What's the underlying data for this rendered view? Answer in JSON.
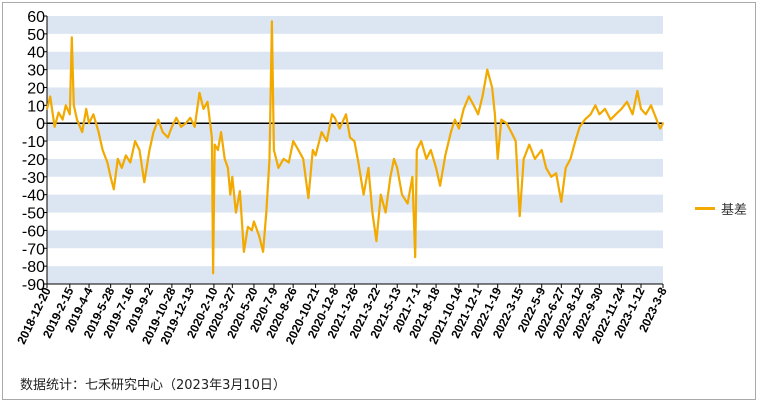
{
  "chart_data": {
    "type": "line",
    "title": "",
    "xlabel": "",
    "ylabel": "",
    "ylim": [
      -90,
      60
    ],
    "y_ticks": [
      60,
      50,
      40,
      30,
      20,
      10,
      0,
      -10,
      -20,
      -30,
      -40,
      -50,
      -60,
      -70,
      -80,
      -90
    ],
    "x_tick_labels": [
      "2018-12-20",
      "2019-2-15",
      "2019-4-4",
      "2019-5-28",
      "2019-7-16",
      "2019-9-2",
      "2019-10-28",
      "2019-12-13",
      "2020-2-10",
      "2020-3-27",
      "2020-5-20",
      "2020-7-9",
      "2020-8-26",
      "2020-10-21",
      "2020-12-8",
      "2021-1-26",
      "2021-3-22",
      "2021-5-13",
      "2021-7-1",
      "2021-8-18",
      "2021-10-14",
      "2021-12-1",
      "2022-1-19",
      "2022-3-15",
      "2022-5-9",
      "2022-6-27",
      "2022-8-12",
      "2022-9-30",
      "2022-11-24",
      "2023-1-12",
      "2023-3-8"
    ],
    "grid": "alternating-horizontal-bands",
    "legend_position": "right",
    "series": [
      {
        "name": "基差",
        "color": "#F2A900",
        "points": [
          {
            "x": "2018-12-20",
            "y": 8
          },
          {
            "x": "2018-12-28",
            "y": 15
          },
          {
            "x": "2019-1-8",
            "y": -2
          },
          {
            "x": "2019-1-18",
            "y": 6
          },
          {
            "x": "2019-1-28",
            "y": 2
          },
          {
            "x": "2019-2-5",
            "y": 10
          },
          {
            "x": "2019-2-15",
            "y": 5
          },
          {
            "x": "2019-2-20",
            "y": 48
          },
          {
            "x": "2019-2-25",
            "y": 10
          },
          {
            "x": "2019-3-5",
            "y": 2
          },
          {
            "x": "2019-3-18",
            "y": -5
          },
          {
            "x": "2019-3-28",
            "y": 8
          },
          {
            "x": "2019-4-4",
            "y": 0
          },
          {
            "x": "2019-4-15",
            "y": 5
          },
          {
            "x": "2019-4-28",
            "y": -5
          },
          {
            "x": "2019-5-8",
            "y": -15
          },
          {
            "x": "2019-5-20",
            "y": -22
          },
          {
            "x": "2019-5-28",
            "y": -30
          },
          {
            "x": "2019-6-5",
            "y": -37
          },
          {
            "x": "2019-6-15",
            "y": -20
          },
          {
            "x": "2019-6-25",
            "y": -25
          },
          {
            "x": "2019-7-5",
            "y": -18
          },
          {
            "x": "2019-7-16",
            "y": -22
          },
          {
            "x": "2019-7-28",
            "y": -10
          },
          {
            "x": "2019-8-8",
            "y": -15
          },
          {
            "x": "2019-8-20",
            "y": -33
          },
          {
            "x": "2019-9-2",
            "y": -15
          },
          {
            "x": "2019-9-12",
            "y": -5
          },
          {
            "x": "2019-9-24",
            "y": 2
          },
          {
            "x": "2019-10-5",
            "y": -5
          },
          {
            "x": "2019-10-18",
            "y": -8
          },
          {
            "x": "2019-10-28",
            "y": -2
          },
          {
            "x": "2019-11-8",
            "y": 3
          },
          {
            "x": "2019-11-20",
            "y": -2
          },
          {
            "x": "2019-12-2",
            "y": 0
          },
          {
            "x": "2019-12-13",
            "y": 3
          },
          {
            "x": "2019-12-24",
            "y": -2
          },
          {
            "x": "2020-1-5",
            "y": 17
          },
          {
            "x": "2020-1-15",
            "y": 8
          },
          {
            "x": "2020-1-25",
            "y": 12
          },
          {
            "x": "2020-2-5",
            "y": -8
          },
          {
            "x": "2020-2-8",
            "y": -84
          },
          {
            "x": "2020-2-12",
            "y": -12
          },
          {
            "x": "2020-2-20",
            "y": -15
          },
          {
            "x": "2020-2-28",
            "y": -5
          },
          {
            "x": "2020-3-8",
            "y": -20
          },
          {
            "x": "2020-3-16",
            "y": -25
          },
          {
            "x": "2020-3-22",
            "y": -40
          },
          {
            "x": "2020-3-27",
            "y": -30
          },
          {
            "x": "2020-4-5",
            "y": -50
          },
          {
            "x": "2020-4-15",
            "y": -38
          },
          {
            "x": "2020-4-25",
            "y": -72
          },
          {
            "x": "2020-5-5",
            "y": -58
          },
          {
            "x": "2020-5-15",
            "y": -60
          },
          {
            "x": "2020-5-20",
            "y": -55
          },
          {
            "x": "2020-6-2",
            "y": -63
          },
          {
            "x": "2020-6-12",
            "y": -72
          },
          {
            "x": "2020-6-20",
            "y": -50
          },
          {
            "x": "2020-6-28",
            "y": -20
          },
          {
            "x": "2020-7-4",
            "y": 57
          },
          {
            "x": "2020-7-9",
            "y": -15
          },
          {
            "x": "2020-7-20",
            "y": -25
          },
          {
            "x": "2020-8-2",
            "y": -20
          },
          {
            "x": "2020-8-15",
            "y": -22
          },
          {
            "x": "2020-8-26",
            "y": -10
          },
          {
            "x": "2020-9-8",
            "y": -15
          },
          {
            "x": "2020-9-20",
            "y": -20
          },
          {
            "x": "2020-10-3",
            "y": -42
          },
          {
            "x": "2020-10-14",
            "y": -15
          },
          {
            "x": "2020-10-21",
            "y": -18
          },
          {
            "x": "2020-11-5",
            "y": -5
          },
          {
            "x": "2020-11-18",
            "y": -10
          },
          {
            "x": "2020-12-1",
            "y": 5
          },
          {
            "x": "2020-12-8",
            "y": 3
          },
          {
            "x": "2020-12-20",
            "y": -3
          },
          {
            "x": "2021-1-5",
            "y": 5
          },
          {
            "x": "2021-1-15",
            "y": -8
          },
          {
            "x": "2021-1-26",
            "y": -10
          },
          {
            "x": "2021-2-5",
            "y": -22
          },
          {
            "x": "2021-2-18",
            "y": -40
          },
          {
            "x": "2021-3-2",
            "y": -25
          },
          {
            "x": "2021-3-12",
            "y": -50
          },
          {
            "x": "2021-3-22",
            "y": -66
          },
          {
            "x": "2021-4-2",
            "y": -40
          },
          {
            "x": "2021-4-14",
            "y": -50
          },
          {
            "x": "2021-4-26",
            "y": -30
          },
          {
            "x": "2021-5-5",
            "y": -20
          },
          {
            "x": "2021-5-13",
            "y": -25
          },
          {
            "x": "2021-5-25",
            "y": -40
          },
          {
            "x": "2021-6-8",
            "y": -45
          },
          {
            "x": "2021-6-20",
            "y": -30
          },
          {
            "x": "2021-6-27",
            "y": -75
          },
          {
            "x": "2021-7-1",
            "y": -15
          },
          {
            "x": "2021-7-12",
            "y": -10
          },
          {
            "x": "2021-7-25",
            "y": -20
          },
          {
            "x": "2021-8-5",
            "y": -15
          },
          {
            "x": "2021-8-18",
            "y": -25
          },
          {
            "x": "2021-8-28",
            "y": -35
          },
          {
            "x": "2021-9-10",
            "y": -18
          },
          {
            "x": "2021-9-24",
            "y": -5
          },
          {
            "x": "2021-10-4",
            "y": 2
          },
          {
            "x": "2021-10-14",
            "y": -3
          },
          {
            "x": "2021-10-26",
            "y": 8
          },
          {
            "x": "2021-11-8",
            "y": 15
          },
          {
            "x": "2021-11-20",
            "y": 10
          },
          {
            "x": "2021-12-1",
            "y": 5
          },
          {
            "x": "2021-12-12",
            "y": 15
          },
          {
            "x": "2021-12-24",
            "y": 30
          },
          {
            "x": "2022-1-5",
            "y": 20
          },
          {
            "x": "2022-1-12",
            "y": 5
          },
          {
            "x": "2022-1-19",
            "y": -20
          },
          {
            "x": "2022-1-28",
            "y": 2
          },
          {
            "x": "2022-2-10",
            "y": 0
          },
          {
            "x": "2022-2-22",
            "y": -5
          },
          {
            "x": "2022-3-5",
            "y": -10
          },
          {
            "x": "2022-3-15",
            "y": -52
          },
          {
            "x": "2022-3-25",
            "y": -20
          },
          {
            "x": "2022-4-8",
            "y": -12
          },
          {
            "x": "2022-4-22",
            "y": -20
          },
          {
            "x": "2022-5-9",
            "y": -15
          },
          {
            "x": "2022-5-20",
            "y": -25
          },
          {
            "x": "2022-6-2",
            "y": -30
          },
          {
            "x": "2022-6-14",
            "y": -28
          },
          {
            "x": "2022-6-27",
            "y": -44
          },
          {
            "x": "2022-7-8",
            "y": -25
          },
          {
            "x": "2022-7-20",
            "y": -20
          },
          {
            "x": "2022-8-1",
            "y": -10
          },
          {
            "x": "2022-8-12",
            "y": -2
          },
          {
            "x": "2022-8-25",
            "y": 2
          },
          {
            "x": "2022-9-8",
            "y": 5
          },
          {
            "x": "2022-9-20",
            "y": 10
          },
          {
            "x": "2022-9-30",
            "y": 5
          },
          {
            "x": "2022-10-14",
            "y": 8
          },
          {
            "x": "2022-10-28",
            "y": 2
          },
          {
            "x": "2022-11-10",
            "y": 5
          },
          {
            "x": "2022-11-24",
            "y": 8
          },
          {
            "x": "2022-12-8",
            "y": 12
          },
          {
            "x": "2022-12-22",
            "y": 5
          },
          {
            "x": "2023-1-3",
            "y": 18
          },
          {
            "x": "2023-1-12",
            "y": 8
          },
          {
            "x": "2023-1-24",
            "y": 5
          },
          {
            "x": "2023-2-6",
            "y": 10
          },
          {
            "x": "2023-2-20",
            "y": 2
          },
          {
            "x": "2023-3-1",
            "y": -3
          },
          {
            "x": "2023-3-8",
            "y": 0
          }
        ]
      }
    ]
  },
  "footer": {
    "source": "数据统计：七禾研究中心（2023年3月10日）"
  },
  "legend": {
    "label": "基差"
  },
  "colors": {
    "band": "#DCE6F2",
    "zero_line": "#000000",
    "axis": "#000000"
  }
}
